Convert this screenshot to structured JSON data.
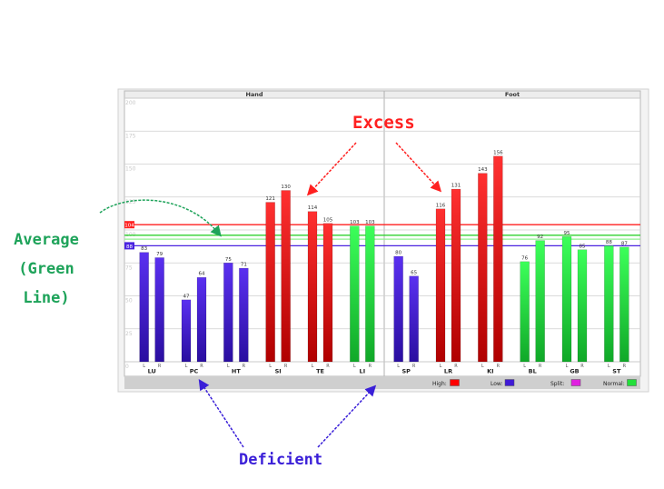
{
  "chart_data": {
    "type": "bar",
    "panels": [
      "Hand",
      "Foot"
    ],
    "y_ticks": [
      "200",
      "175",
      "150",
      "125",
      "100",
      "75",
      "50",
      "25",
      "0"
    ],
    "ylim": [
      0,
      200
    ],
    "grid": true,
    "groups": [
      {
        "name": "LU",
        "panel": "Hand",
        "left": 83,
        "right": 79,
        "level": "Low"
      },
      {
        "name": "PC",
        "panel": "Hand",
        "left": 47,
        "right": 64,
        "level": "Low"
      },
      {
        "name": "HT",
        "panel": "Hand",
        "left": 75,
        "right": 71,
        "level": "Low"
      },
      {
        "name": "SI",
        "panel": "Hand",
        "left": 121,
        "right": 130,
        "level": "High"
      },
      {
        "name": "TE",
        "panel": "Hand",
        "left": 114,
        "right": 105,
        "level": "High"
      },
      {
        "name": "LI",
        "panel": "Hand",
        "left": 103,
        "right": 103,
        "level": "Normal"
      },
      {
        "name": "SP",
        "panel": "Foot",
        "left": 80,
        "right": 65,
        "level": "Low"
      },
      {
        "name": "LR",
        "panel": "Foot",
        "left": 116,
        "right": 131,
        "level": "High"
      },
      {
        "name": "KI",
        "panel": "Foot",
        "left": 143,
        "right": 156,
        "level": "High"
      },
      {
        "name": "BL",
        "panel": "Foot",
        "left": 76,
        "right": 92,
        "level": "Normal"
      },
      {
        "name": "GB",
        "panel": "Foot",
        "left": 95,
        "right": 85,
        "level": "Normal"
      },
      {
        "name": "ST",
        "panel": "Foot",
        "left": 88,
        "right": 87,
        "level": "Normal"
      }
    ],
    "side_labels": [
      "L",
      "R"
    ],
    "reference_lines": [
      {
        "label": "104",
        "value": 104,
        "color": "#ff1f1f"
      },
      {
        "label": "",
        "value": 96,
        "color": "#2fd22f"
      },
      {
        "label": "",
        "value": 93,
        "color": "#8ff08f"
      },
      {
        "label": "88",
        "value": 88,
        "color": "#4a22e0"
      }
    ],
    "legend": [
      {
        "label": "High:",
        "color": "#ff0000",
        "level": "High"
      },
      {
        "label": "Low:",
        "color": "#3f1ad6",
        "level": "Low"
      },
      {
        "label": "Split:",
        "color": "#e020e0",
        "level": "Split"
      },
      {
        "label": "Normal:",
        "color": "#22e03a",
        "level": "Normal"
      }
    ],
    "legend_position": "bottom-right",
    "colors": {
      "High": "#ff1414",
      "Low": "#4a22e8",
      "Normal": "#22f04a"
    }
  },
  "annotations": {
    "excess": "Excess",
    "average_lines": [
      "Average",
      "(Green",
      "Line)"
    ],
    "deficient": "Deficient"
  }
}
